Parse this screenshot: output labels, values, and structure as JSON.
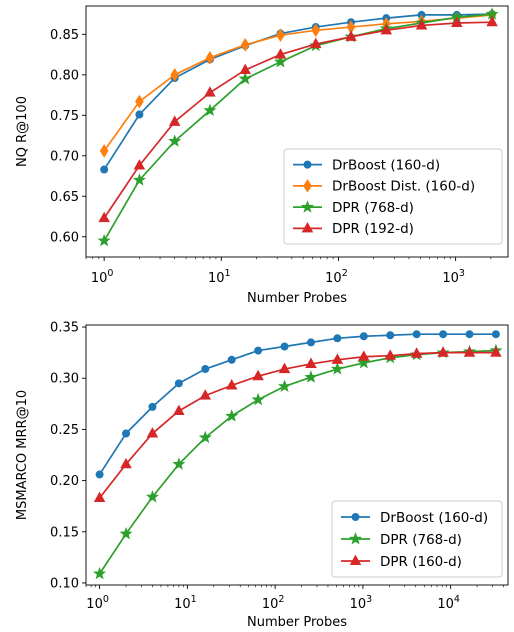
{
  "chart_data": [
    {
      "type": "line",
      "xscale": "log",
      "xlabel": "Number Probes",
      "ylabel": "NQ R@100",
      "xlim": [
        0.7,
        2800
      ],
      "ylim": [
        0.575,
        0.885
      ],
      "yticks": [
        0.6,
        0.65,
        0.7,
        0.75,
        0.8,
        0.85
      ],
      "ytick_labels": [
        "0.60",
        "0.65",
        "0.70",
        "0.75",
        "0.80",
        "0.85"
      ],
      "xticks": [
        1,
        10,
        100,
        1000
      ],
      "xtick_labels": [
        {
          "base": "10",
          "exp": "0"
        },
        {
          "base": "10",
          "exp": "1"
        },
        {
          "base": "10",
          "exp": "2"
        },
        {
          "base": "10",
          "exp": "3"
        }
      ],
      "legend_position": "lower-right",
      "x": [
        1,
        2,
        4,
        8,
        16,
        32,
        64,
        128,
        256,
        512,
        1024,
        2048
      ],
      "series": [
        {
          "name": "DrBoost (160-d)",
          "color": "#1f77b4",
          "marker": "circle",
          "values": [
            0.683,
            0.751,
            0.796,
            0.819,
            0.836,
            0.851,
            0.859,
            0.865,
            0.87,
            0.874,
            0.874,
            0.875
          ]
        },
        {
          "name": "DrBoost Dist. (160-d)",
          "color": "#ff7f0e",
          "marker": "diamond",
          "values": [
            0.706,
            0.767,
            0.8,
            0.821,
            0.837,
            0.849,
            0.855,
            0.859,
            0.863,
            0.866,
            0.87,
            0.874
          ]
        },
        {
          "name": "DPR (768-d)",
          "color": "#2ca02c",
          "marker": "star",
          "values": [
            0.595,
            0.67,
            0.718,
            0.756,
            0.795,
            0.816,
            0.836,
            0.847,
            0.857,
            0.864,
            0.871,
            0.875
          ]
        },
        {
          "name": "DPR (192-d)",
          "color": "#d62728",
          "marker": "triangle",
          "values": [
            0.623,
            0.688,
            0.742,
            0.778,
            0.806,
            0.825,
            0.838,
            0.847,
            0.855,
            0.861,
            0.864,
            0.865
          ]
        }
      ]
    },
    {
      "type": "line",
      "xscale": "log",
      "xlabel": "Number Probes",
      "ylabel": "MSMARCO MRR@10",
      "xlim": [
        0.7,
        45000
      ],
      "ylim": [
        0.098,
        0.352
      ],
      "yticks": [
        0.1,
        0.15,
        0.2,
        0.25,
        0.3,
        0.35
      ],
      "ytick_labels": [
        "0.10",
        "0.15",
        "0.20",
        "0.25",
        "0.30",
        "0.35"
      ],
      "xticks": [
        1,
        10,
        100,
        1000,
        10000
      ],
      "xtick_labels": [
        {
          "base": "10",
          "exp": "0"
        },
        {
          "base": "10",
          "exp": "1"
        },
        {
          "base": "10",
          "exp": "2"
        },
        {
          "base": "10",
          "exp": "3"
        },
        {
          "base": "10",
          "exp": "4"
        }
      ],
      "legend_position": "lower-right",
      "x": [
        1,
        2,
        4,
        8,
        16,
        32,
        64,
        128,
        256,
        512,
        1024,
        2048,
        4096,
        8192,
        16384,
        32768
      ],
      "series": [
        {
          "name": "DrBoost (160-d)",
          "color": "#1f77b4",
          "marker": "circle",
          "values": [
            0.206,
            0.246,
            0.272,
            0.295,
            0.309,
            0.318,
            0.327,
            0.331,
            0.335,
            0.339,
            0.341,
            0.342,
            0.343,
            0.343,
            0.343,
            0.343
          ]
        },
        {
          "name": "DPR (768-d)",
          "color": "#2ca02c",
          "marker": "star",
          "values": [
            0.109,
            0.148,
            0.184,
            0.216,
            0.242,
            0.263,
            0.279,
            0.292,
            0.301,
            0.309,
            0.315,
            0.32,
            0.323,
            0.325,
            0.326,
            0.327
          ]
        },
        {
          "name": "DPR (160-d)",
          "color": "#d62728",
          "marker": "triangle",
          "values": [
            0.183,
            0.216,
            0.246,
            0.268,
            0.283,
            0.293,
            0.302,
            0.309,
            0.314,
            0.318,
            0.321,
            0.322,
            0.324,
            0.325,
            0.325,
            0.325
          ]
        }
      ]
    }
  ]
}
